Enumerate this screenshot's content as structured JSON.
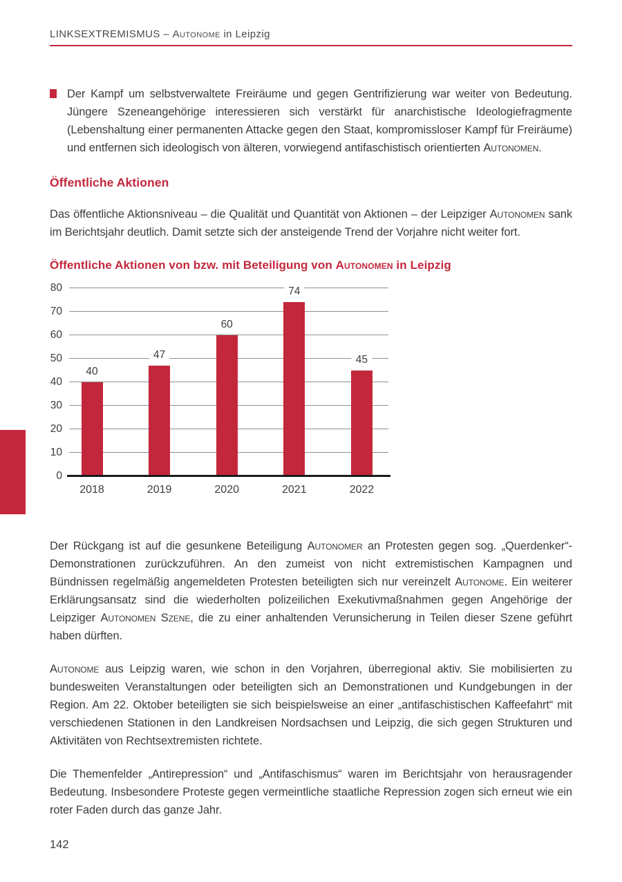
{
  "colors": {
    "accent": "#C3273C",
    "body_text": "#3C3C3C",
    "header_text": "#4A4A4A",
    "grid_line": "#8F8F8F",
    "axis_line": "#1A1A1A",
    "page_background": "#FFFFFF"
  },
  "header": {
    "segments": [
      {
        "text": "LINKSEXTREMISMUS – "
      },
      {
        "text": "Autonome",
        "smallcaps": true
      },
      {
        "text": " in Leipzig"
      }
    ]
  },
  "bullet_item": {
    "segments": [
      {
        "text": "Der Kampf um selbstverwaltete Freiräume und gegen Gentrifizierung war weiter von Bedeutung. Jüngere Szeneangehörige interessieren sich verstärkt für anarchistische Ideologiefragmente (Lebenshaltung einer permanenten Attacke gegen den Staat, kompromissloser Kampf für Freiräume) und entfernen sich ideologisch von älteren, vorwiegend antifaschistisch orientierten "
      },
      {
        "text": "Autonomen",
        "smallcaps": true
      },
      {
        "text": "."
      }
    ]
  },
  "section_heading": "Öffentliche Aktionen",
  "paragraphs": [
    {
      "segments": [
        {
          "text": "Das öffentliche Aktionsniveau – die Qualität und Quantität von Aktionen – der Leipziger "
        },
        {
          "text": "Autonomen",
          "smallcaps": true
        },
        {
          "text": " sank im Berichtsjahr deutlich. Damit setzte sich der ansteigende Trend der Vorjahre nicht weiter fort."
        }
      ]
    },
    {
      "segments": [
        {
          "text": "Der Rückgang ist auf die gesunkene Beteiligung "
        },
        {
          "text": "Autonomer",
          "smallcaps": true
        },
        {
          "text": " an Protesten gegen sog. „Querdenker“-Demonstrationen zurückzuführen. An den zumeist von nicht extremistischen Kampagnen und Bündnissen regelmäßig angemeldeten Protesten beteiligten sich nur vereinzelt "
        },
        {
          "text": "Autonome",
          "smallcaps": true
        },
        {
          "text": ". Ein weiterer Erklärungsansatz sind die wiederholten polizeilichen Exekutivmaßnahmen gegen Angehörige der Leipziger "
        },
        {
          "text": "Autonomen Szene",
          "smallcaps": true
        },
        {
          "text": ", die zu einer anhaltenden Verunsicherung in Teilen dieser Szene geführt haben dürften."
        }
      ]
    },
    {
      "segments": [
        {
          "text": "Autonome",
          "smallcaps": true
        },
        {
          "text": " aus Leipzig waren, wie schon in den Vorjahren, überregional aktiv. Sie mobilisierten zu bundesweiten Veranstaltungen oder beteiligten sich an Demonstrationen und Kundgebungen in der Region. Am 22. Oktober beteiligten sie sich beispielsweise an einer „antifaschistischen Kaffeefahrt“ mit verschiedenen Stationen in den Landkreisen Nordsachsen und Leipzig, die sich gegen Strukturen und Aktivitäten von Rechtsextremisten richtete."
        }
      ]
    },
    {
      "segments": [
        {
          "text": "Die Themenfelder „Antirepression“ und „Antifaschismus“ waren im Berichtsjahr von herausragender Bedeutung. Insbesondere Proteste gegen vermeintliche staatliche Repression zogen sich erneut wie ein roter Faden durch das ganze Jahr."
        }
      ]
    }
  ],
  "chart_title": {
    "segments": [
      {
        "text": "Öffentliche Aktionen von bzw. mit Beteiligung von "
      },
      {
        "text": "Autonomen",
        "smallcaps": true
      },
      {
        "text": " in Leipzig"
      }
    ]
  },
  "chart_data": {
    "type": "bar",
    "title": "Öffentliche Aktionen von bzw. mit Beteiligung von Autonomen in Leipzig",
    "categories": [
      "2018",
      "2019",
      "2020",
      "2021",
      "2022"
    ],
    "values": [
      40,
      47,
      60,
      74,
      45
    ],
    "ylim": [
      0,
      80
    ],
    "ytick_step": 10,
    "yticks": [
      0,
      10,
      20,
      30,
      40,
      50,
      60,
      70,
      80
    ],
    "grid": true,
    "legend": "none",
    "bar_color": "#C3273C",
    "value_labels": true
  },
  "page_number": "142"
}
